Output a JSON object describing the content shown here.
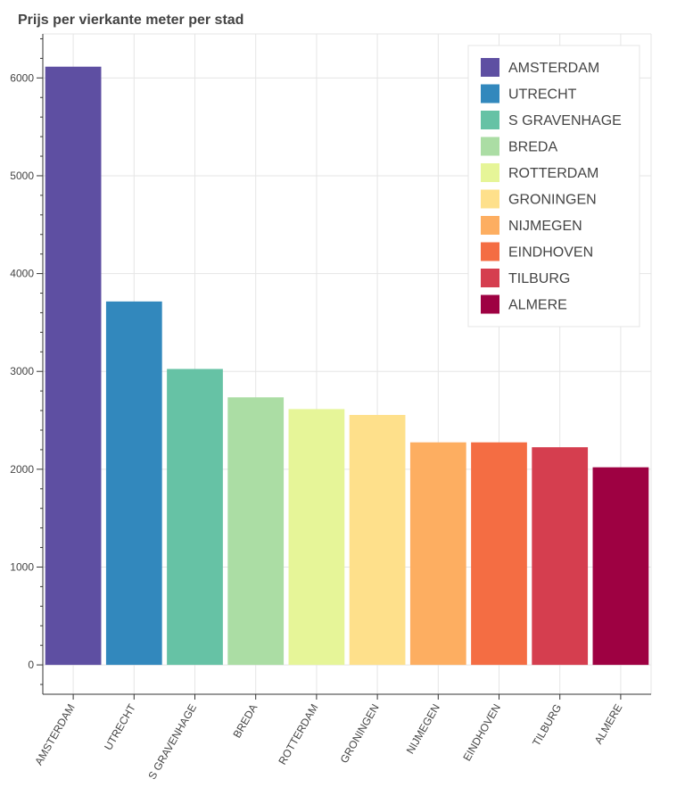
{
  "chart_data": {
    "type": "bar",
    "title": "Prijs per vierkante meter per stad",
    "xlabel": "",
    "ylabel": "",
    "categories": [
      "AMSTERDAM",
      "UTRECHT",
      "S GRAVENHAGE",
      "BREDA",
      "ROTTERDAM",
      "GRONINGEN",
      "NIJMEGEN",
      "EINDHOVEN",
      "TILBURG",
      "ALMERE"
    ],
    "values": [
      6115,
      3715,
      3025,
      2735,
      2615,
      2555,
      2275,
      2275,
      2225,
      2020
    ],
    "colors": [
      "#5e4fa2",
      "#3288bd",
      "#66c2a5",
      "#abdda4",
      "#e6f598",
      "#fee08b",
      "#fdae61",
      "#f46d43",
      "#d53e4f",
      "#9e0142"
    ],
    "ylim": [
      -300,
      6450
    ],
    "yticks": [
      0,
      1000,
      2000,
      3000,
      4000,
      5000,
      6000
    ],
    "legend": {
      "position": "top-right",
      "entries": [
        "AMSTERDAM",
        "UTRECHT",
        "S GRAVENHAGE",
        "BREDA",
        "ROTTERDAM",
        "GRONINGEN",
        "NIJMEGEN",
        "EINDHOVEN",
        "TILBURG",
        "ALMERE"
      ]
    },
    "grid": true
  }
}
